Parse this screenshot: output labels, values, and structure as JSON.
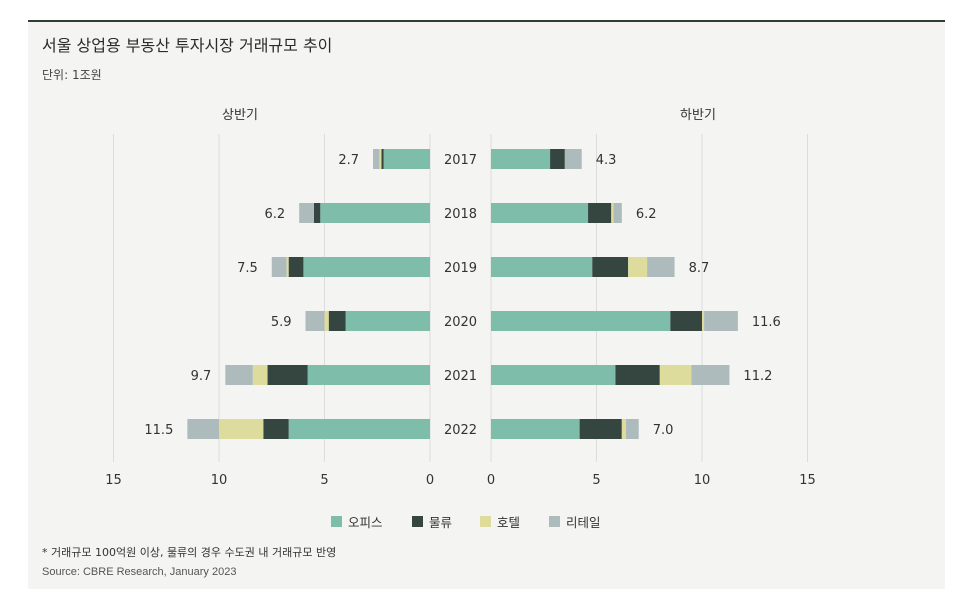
{
  "title": "서울 상업용 부동산 투자시장 거래규모 추이",
  "unit": "단위:  1조원",
  "footnote": "* 거래규모 100억원 이상, 물류의 경우 수도권 내 거래규모 반영",
  "source": "Source: CBRE Research, January 2023",
  "chart_data": {
    "type": "bar",
    "orientation": "horizontal-butterfly",
    "stacked": true,
    "categories": [
      "2017",
      "2018",
      "2019",
      "2020",
      "2021",
      "2022"
    ],
    "colors": {
      "오피스": "#7dbda9",
      "물류": "#34463f",
      "호텔": "#dedc9d",
      "리테일": "#aebbbd"
    },
    "panels": [
      {
        "name": "상반기",
        "direction": "left",
        "xlim": [
          0,
          15
        ],
        "ticks": [
          15,
          10,
          5,
          0
        ],
        "totals": [
          "2.7",
          "6.2",
          "7.5",
          "5.9",
          "9.7",
          "11.5"
        ],
        "series": [
          {
            "name": "오피스",
            "values": [
              2.2,
              5.2,
              6.0,
              4.0,
              5.8,
              6.7
            ]
          },
          {
            "name": "물류",
            "values": [
              0.1,
              0.3,
              0.7,
              0.8,
              1.9,
              1.2
            ]
          },
          {
            "name": "호텔",
            "values": [
              0.1,
              0.0,
              0.1,
              0.2,
              0.7,
              2.1
            ]
          },
          {
            "name": "리테일",
            "values": [
              0.3,
              0.7,
              0.7,
              0.9,
              1.3,
              1.5
            ]
          }
        ]
      },
      {
        "name": "하반기",
        "direction": "right",
        "xlim": [
          0,
          15
        ],
        "ticks": [
          0,
          5,
          10,
          15
        ],
        "totals": [
          "4.3",
          "6.2",
          "8.7",
          "11.6",
          "11.2",
          "7.0"
        ],
        "series": [
          {
            "name": "오피스",
            "values": [
              2.8,
              4.6,
              4.8,
              8.5,
              5.9,
              4.2
            ]
          },
          {
            "name": "물류",
            "values": [
              0.7,
              1.1,
              1.7,
              1.5,
              2.1,
              2.0
            ]
          },
          {
            "name": "호텔",
            "values": [
              0.0,
              0.1,
              0.9,
              0.1,
              1.5,
              0.2
            ]
          },
          {
            "name": "리테일",
            "values": [
              0.8,
              0.4,
              1.3,
              1.6,
              1.8,
              0.6
            ]
          }
        ]
      }
    ],
    "legend": {
      "position": "bottom",
      "items": [
        "오피스",
        "물류",
        "호텔",
        "리테일"
      ]
    }
  }
}
